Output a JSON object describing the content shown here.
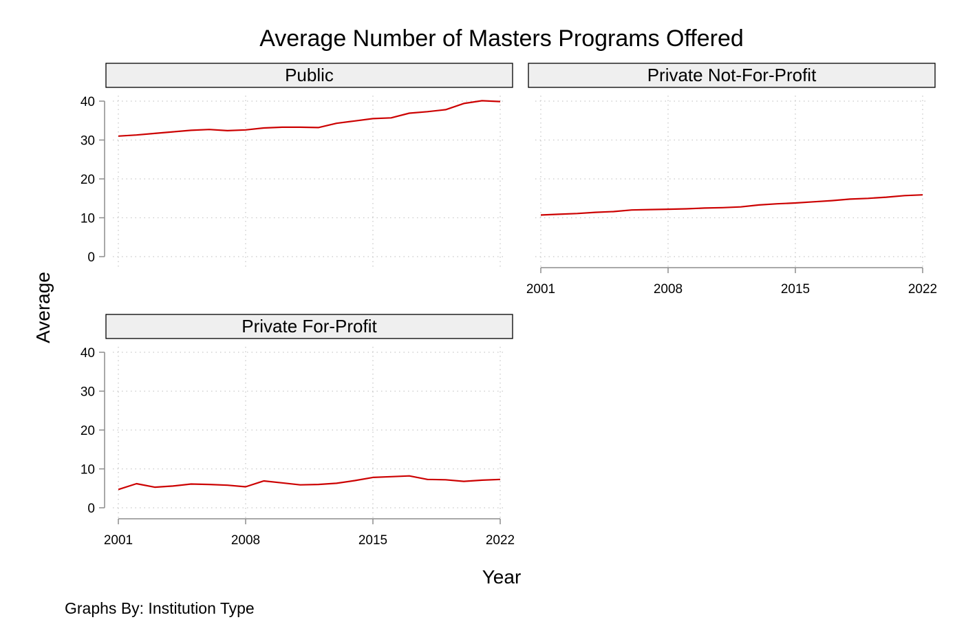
{
  "chart_data": {
    "type": "line",
    "title": "Average Number of Masters Programs Offered",
    "xlabel": "Year",
    "ylabel": "Average",
    "note": "Graphs By: Institution Type",
    "x_ticks": [
      2001,
      2008,
      2015,
      2022
    ],
    "y_ticks": [
      0,
      10,
      20,
      30,
      40
    ],
    "xlim": [
      2001,
      2022
    ],
    "ylim": [
      0,
      40
    ],
    "grid": true,
    "line_color": "#cc0000",
    "strip_fill": "#efefef",
    "x": [
      2001,
      2002,
      2003,
      2004,
      2005,
      2006,
      2007,
      2008,
      2009,
      2010,
      2011,
      2012,
      2013,
      2014,
      2015,
      2016,
      2017,
      2018,
      2019,
      2020,
      2021,
      2022
    ],
    "panels": [
      {
        "name": "Public",
        "values": [
          31.0,
          31.3,
          31.7,
          32.1,
          32.5,
          32.7,
          32.4,
          32.6,
          33.1,
          33.3,
          33.3,
          33.2,
          34.3,
          34.9,
          35.5,
          35.7,
          36.9,
          37.3,
          37.8,
          39.4,
          40.1,
          39.9
        ]
      },
      {
        "name": "Private Not-For-Profit",
        "values": [
          10.7,
          10.9,
          11.1,
          11.4,
          11.6,
          12.0,
          12.1,
          12.2,
          12.3,
          12.5,
          12.6,
          12.8,
          13.3,
          13.6,
          13.8,
          14.1,
          14.4,
          14.8,
          15.0,
          15.3,
          15.7,
          15.9
        ]
      },
      {
        "name": "Private For-Profit",
        "values": [
          4.7,
          6.2,
          5.3,
          5.6,
          6.1,
          6.0,
          5.8,
          5.4,
          6.9,
          6.4,
          5.9,
          6.0,
          6.3,
          7.0,
          7.8,
          8.0,
          8.2,
          7.3,
          7.2,
          6.8,
          7.1,
          7.3
        ]
      }
    ]
  }
}
